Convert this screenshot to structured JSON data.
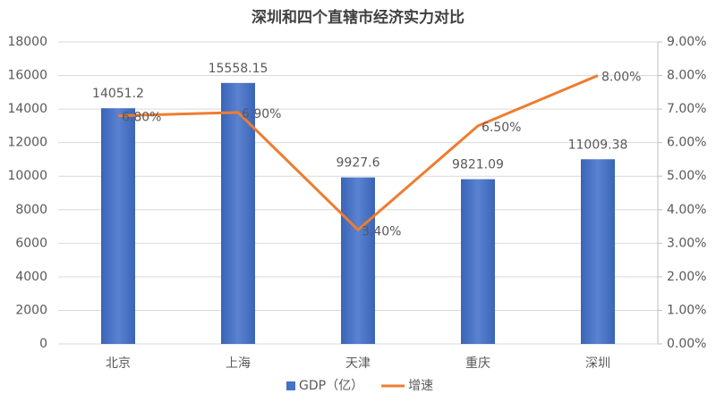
{
  "chart_data": {
    "type": "bar",
    "title": "深圳和四个直辖市经济实力对比",
    "categories": [
      "北京",
      "上海",
      "天津",
      "重庆",
      "深圳"
    ],
    "series": [
      {
        "name": "GDP（亿）",
        "type": "bar",
        "color": "#4472c4",
        "values": [
          14051.2,
          15558.15,
          9927.6,
          9821.09,
          11009.38
        ]
      },
      {
        "name": "增速",
        "type": "line",
        "axis": "y2",
        "color": "#ed7d31",
        "values": [
          6.8,
          6.9,
          3.4,
          6.5,
          8.0
        ],
        "value_labels": [
          "6.80%",
          "6.90%",
          "3.40%",
          "6.50%",
          "8.00%"
        ]
      }
    ],
    "ylim": [
      0,
      18000
    ],
    "yticks": [
      0,
      2000,
      4000,
      6000,
      8000,
      10000,
      12000,
      14000,
      16000,
      18000
    ],
    "y2lim": [
      0,
      9
    ],
    "y2ticks": [
      {
        "value": 0,
        "label": "0.00%"
      },
      {
        "value": 1,
        "label": "1.00%"
      },
      {
        "value": 2,
        "label": "2.00%"
      },
      {
        "value": 3,
        "label": "3.00%"
      },
      {
        "value": 4,
        "label": "4.00%"
      },
      {
        "value": 5,
        "label": "5.00%"
      },
      {
        "value": 6,
        "label": "6.00%"
      },
      {
        "value": 7,
        "label": "7.00%"
      },
      {
        "value": 8,
        "label": "8.00%"
      },
      {
        "value": 9,
        "label": "9.00%"
      }
    ],
    "grid": true,
    "legend": "bottom"
  }
}
